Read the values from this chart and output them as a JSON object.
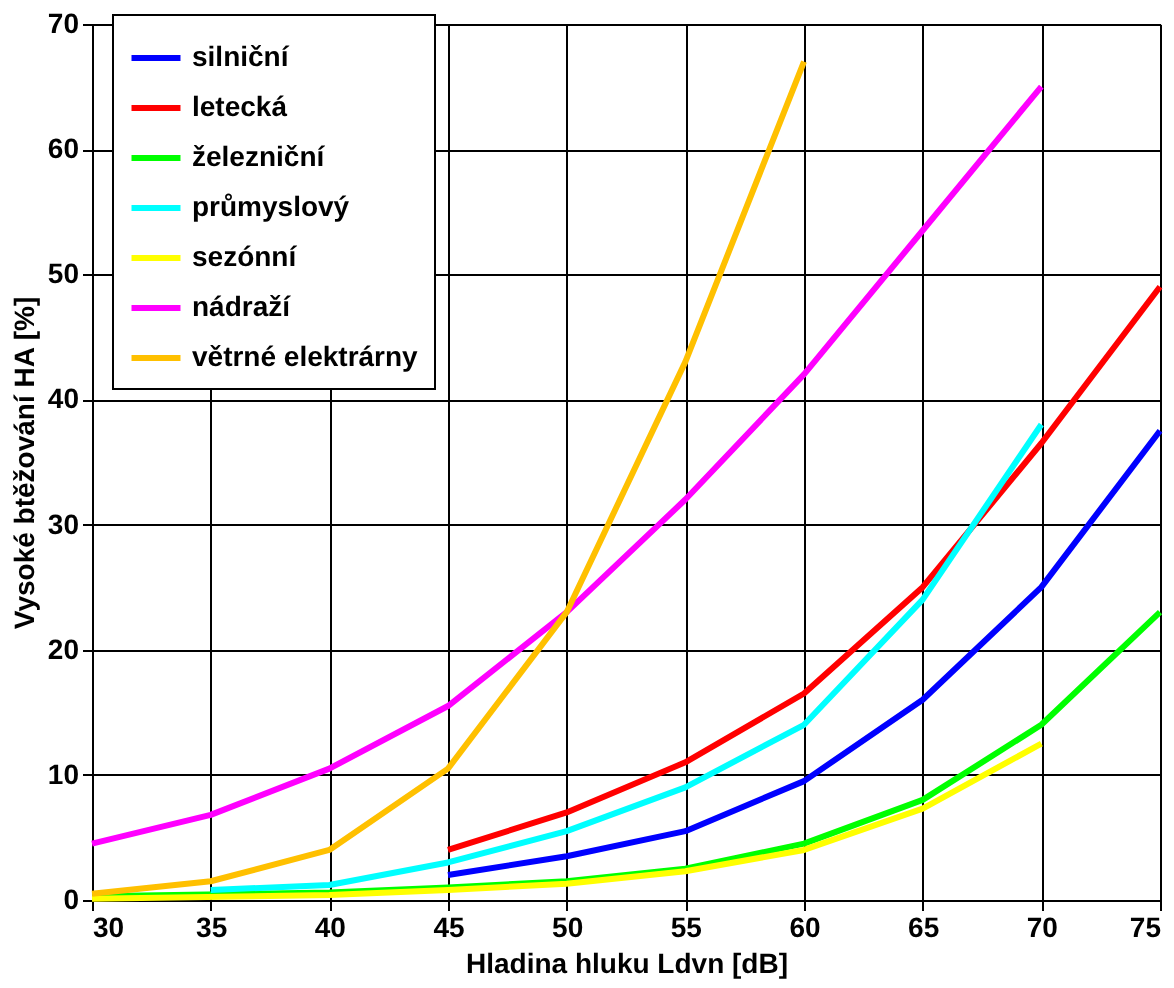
{
  "chart_data": {
    "type": "line",
    "xlabel": "Hladina hluku Ldvn [dB]",
    "ylabel": "Vysoké btěžování HA [%]",
    "xlim": [
      30,
      75
    ],
    "xticks": [
      30,
      35,
      40,
      45,
      50,
      55,
      60,
      65,
      70,
      75
    ],
    "ylim": [
      0,
      70
    ],
    "yticks": [
      0,
      10,
      20,
      30,
      40,
      50,
      60,
      70
    ],
    "grid": true,
    "legend": "top left",
    "marker": "none",
    "line_style": "solid",
    "series": [
      {
        "name": "silniční",
        "color": "#0000ff",
        "x": [
          45,
          50,
          55,
          60,
          65,
          70,
          75
        ],
        "values": [
          2,
          3.5,
          5.5,
          9.5,
          16,
          25,
          37.5
        ]
      },
      {
        "name": "letecká",
        "color": "#ff0000",
        "x": [
          45,
          50,
          55,
          60,
          65,
          70,
          75
        ],
        "values": [
          4,
          7,
          11,
          16.5,
          25,
          36.5,
          49
        ]
      },
      {
        "name": "železniční",
        "color": "#00ff00",
        "x": [
          30,
          40,
          45,
          50,
          55,
          60,
          65,
          70,
          75
        ],
        "values": [
          0.3,
          0.6,
          1,
          1.5,
          2.5,
          4.5,
          8,
          14,
          23
        ]
      },
      {
        "name": "průmyslový",
        "color": "#00ffff",
        "x": [
          35,
          40,
          45,
          50,
          55,
          60,
          65,
          70
        ],
        "values": [
          0.8,
          1.2,
          3,
          5.5,
          9,
          14,
          24,
          38
        ]
      },
      {
        "name": "sezónní",
        "color": "#ffff00",
        "x": [
          30,
          40,
          45,
          50,
          55,
          60,
          65,
          70
        ],
        "values": [
          0.1,
          0.4,
          0.8,
          1.3,
          2.3,
          4,
          7.3,
          12.5
        ]
      },
      {
        "name": "nádraží",
        "color": "#ff00ff",
        "x": [
          30,
          35,
          40,
          45,
          50,
          55,
          60,
          65,
          70
        ],
        "values": [
          4.5,
          6.8,
          10.5,
          15.5,
          23,
          32,
          42,
          53.5,
          65
        ]
      },
      {
        "name": "větrné elektrárny",
        "color": "#ffc000",
        "x": [
          30,
          35,
          40,
          45,
          50,
          55,
          60
        ],
        "values": [
          0.5,
          1.5,
          4,
          10.5,
          23,
          43,
          67
        ]
      }
    ]
  }
}
